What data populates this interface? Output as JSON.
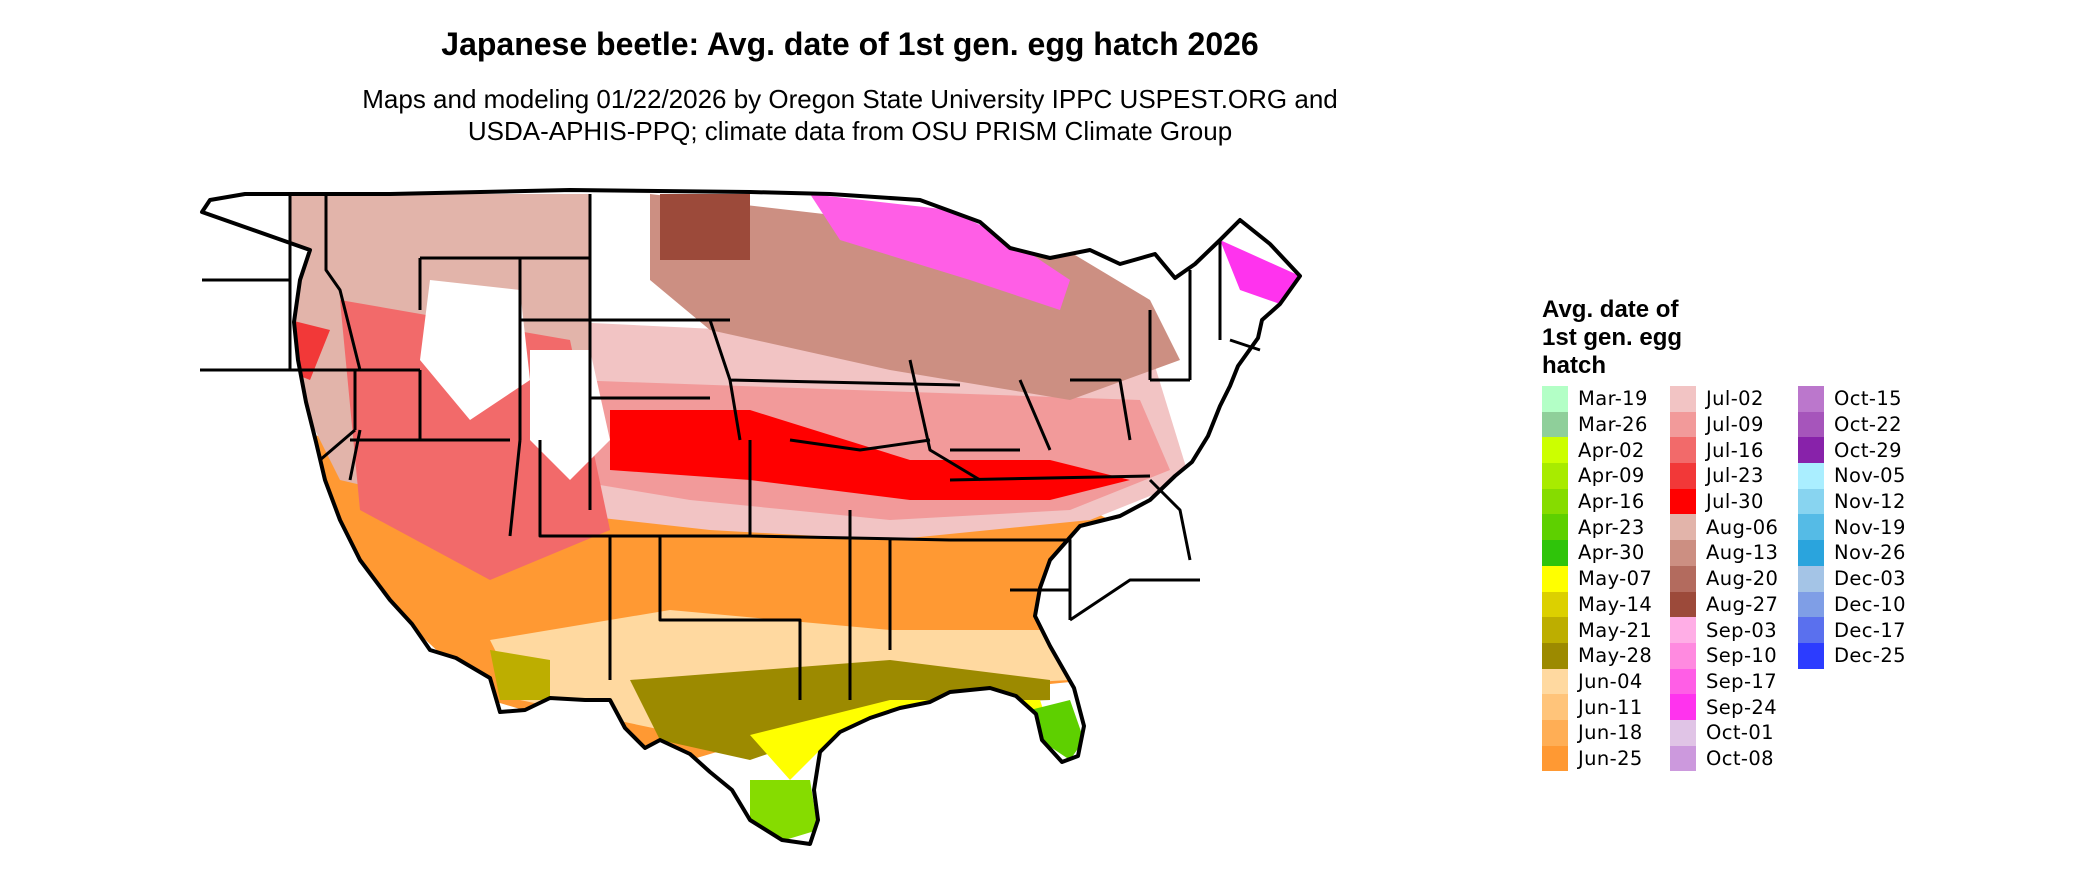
{
  "title": "Japanese beetle: Avg. date of 1st gen. egg hatch 2026",
  "subtitle_line1": "Maps and modeling 01/22/2026 by Oregon State University IPPC USPEST.ORG and",
  "subtitle_line2": "USDA-APHIS-PPQ; climate data from OSU PRISM Climate Group",
  "legend": {
    "title_lines": [
      "Avg. date of",
      "1st gen. egg",
      "hatch"
    ],
    "columns": [
      [
        {
          "label": "Mar-19",
          "color": "#b3ffc6"
        },
        {
          "label": "Mar-26",
          "color": "#8fcf9a"
        },
        {
          "label": "Apr-02",
          "color": "#ccff00"
        },
        {
          "label": "Apr-09",
          "color": "#a8eb00"
        },
        {
          "label": "Apr-16",
          "color": "#86dc00"
        },
        {
          "label": "Apr-23",
          "color": "#5ed000"
        },
        {
          "label": "Apr-30",
          "color": "#2fc40a"
        },
        {
          "label": "May-07",
          "color": "#ffff00"
        },
        {
          "label": "May-14",
          "color": "#dcd000"
        },
        {
          "label": "May-21",
          "color": "#bdae00"
        },
        {
          "label": "May-28",
          "color": "#9c8a00"
        },
        {
          "label": "Jun-04",
          "color": "#ffd9a0"
        },
        {
          "label": "Jun-11",
          "color": "#ffc47a"
        },
        {
          "label": "Jun-18",
          "color": "#ffae55"
        },
        {
          "label": "Jun-25",
          "color": "#ff9933"
        }
      ],
      [
        {
          "label": "Jul-02",
          "color": "#f2c4c4"
        },
        {
          "label": "Jul-09",
          "color": "#f29a9a"
        },
        {
          "label": "Jul-16",
          "color": "#f26a6a"
        },
        {
          "label": "Jul-23",
          "color": "#f23838"
        },
        {
          "label": "Jul-30",
          "color": "#ff0000"
        },
        {
          "label": "Aug-06",
          "color": "#e2b4aa"
        },
        {
          "label": "Aug-13",
          "color": "#cc8f82"
        },
        {
          "label": "Aug-20",
          "color": "#b36b5e"
        },
        {
          "label": "Aug-27",
          "color": "#9c4a3a"
        },
        {
          "label": "Sep-03",
          "color": "#ffaee6"
        },
        {
          "label": "Sep-10",
          "color": "#ff8ae0"
        },
        {
          "label": "Sep-17",
          "color": "#ff5ee6"
        },
        {
          "label": "Sep-24",
          "color": "#ff33ee"
        },
        {
          "label": "Oct-01",
          "color": "#e0c4e6"
        },
        {
          "label": "Oct-08",
          "color": "#cc99dd"
        }
      ],
      [
        {
          "label": "Oct-15",
          "color": "#bb77cc"
        },
        {
          "label": "Oct-22",
          "color": "#a655bb"
        },
        {
          "label": "Oct-29",
          "color": "#8822aa"
        },
        {
          "label": "Nov-05",
          "color": "#aaeeff"
        },
        {
          "label": "Nov-12",
          "color": "#88d4f0"
        },
        {
          "label": "Nov-19",
          "color": "#55bbe6"
        },
        {
          "label": "Nov-26",
          "color": "#2aa4dd"
        },
        {
          "label": "Dec-03",
          "color": "#a4c4e6"
        },
        {
          "label": "Dec-10",
          "color": "#7f9ee6"
        },
        {
          "label": "Dec-17",
          "color": "#5a70ee"
        },
        {
          "label": "Dec-25",
          "color": "#2c3cff"
        }
      ]
    ]
  }
}
